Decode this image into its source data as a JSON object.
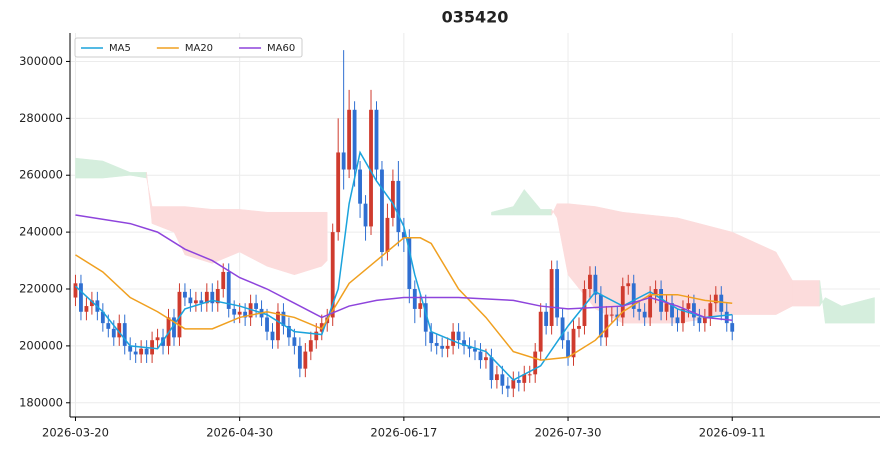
{
  "chart_data": {
    "type": "candlestick",
    "title": "035420",
    "xlim": [
      -1,
      147
    ],
    "xticks": [
      {
        "value": 0,
        "label": "2026-03-20"
      },
      {
        "value": 30,
        "label": "2026-04-30"
      },
      {
        "value": 60,
        "label": "2026-06-17"
      },
      {
        "value": 90,
        "label": "2026-07-30"
      },
      {
        "value": 120,
        "label": "2026-09-11"
      }
    ],
    "ylim": [
      175000,
      310000
    ],
    "yticks": [
      180000,
      200000,
      220000,
      240000,
      260000,
      280000,
      300000
    ],
    "grid": true,
    "legend": "upper left",
    "up_color": "#cf3b2e",
    "down_color": "#2f6fd1",
    "cloud_up_color": "#d5eedd",
    "cloud_down_color": "#fcdcdc",
    "candles": {
      "x": [
        0,
        1,
        2,
        3,
        4,
        5,
        6,
        7,
        8,
        9,
        10,
        11,
        12,
        13,
        14,
        15,
        16,
        17,
        18,
        19,
        20,
        21,
        22,
        23,
        24,
        25,
        26,
        27,
        28,
        29,
        30,
        31,
        32,
        33,
        34,
        35,
        36,
        37,
        38,
        39,
        40,
        41,
        42,
        43,
        44,
        45,
        46,
        47,
        48,
        49,
        50,
        51,
        52,
        53,
        54,
        55,
        56,
        57,
        58,
        59,
        60,
        61,
        62,
        63,
        64,
        65,
        66,
        67,
        68,
        69,
        70,
        71,
        72,
        73,
        74,
        75,
        76,
        77,
        78,
        79,
        80,
        81,
        82,
        83,
        84,
        85,
        86,
        87,
        88,
        89,
        90,
        91,
        92,
        93,
        94,
        95,
        96,
        97,
        98,
        99,
        100,
        101,
        102,
        103,
        104,
        105,
        106,
        107,
        108,
        109,
        110,
        111,
        112,
        113,
        114,
        115,
        116,
        117,
        118,
        119,
        120
      ],
      "open": [
        217000,
        222000,
        212000,
        214000,
        216000,
        212000,
        208000,
        206000,
        203000,
        208000,
        200000,
        198000,
        197000,
        199000,
        197000,
        202000,
        203000,
        200000,
        210000,
        203000,
        219000,
        217000,
        215000,
        216000,
        215000,
        219000,
        215000,
        220000,
        226000,
        213000,
        211000,
        212000,
        210000,
        215000,
        213000,
        210000,
        205000,
        202000,
        212000,
        207000,
        203000,
        200000,
        192000,
        198000,
        202000,
        205000,
        208000,
        210000,
        240000,
        268000,
        262000,
        283000,
        262000,
        250000,
        242000,
        283000,
        262000,
        233000,
        245000,
        258000,
        240000,
        238000,
        220000,
        213000,
        215000,
        205000,
        201000,
        200000,
        199000,
        200000,
        205000,
        202000,
        200000,
        199000,
        198000,
        195000,
        196000,
        188000,
        190000,
        186000,
        185000,
        188000,
        187000,
        190000,
        190000,
        198000,
        212000,
        207000,
        227000,
        210000,
        202000,
        196000,
        206000,
        207000,
        220000,
        225000,
        218000,
        203000,
        211000,
        211000,
        210000,
        221000,
        222000,
        213000,
        212000,
        210000,
        218000,
        220000,
        212000,
        215000,
        210000,
        208000,
        213000,
        215000,
        210000,
        208000,
        210000,
        215000,
        218000,
        212000,
        208000
      ],
      "high": [
        225000,
        225000,
        217000,
        219000,
        219000,
        215000,
        211000,
        209000,
        211000,
        211000,
        203000,
        201000,
        202000,
        202000,
        205000,
        206000,
        206000,
        213000,
        213000,
        222000,
        222000,
        220000,
        219000,
        219000,
        222000,
        222000,
        223000,
        229000,
        229000,
        216000,
        215000,
        215000,
        218000,
        218000,
        216000,
        213000,
        208000,
        215000,
        215000,
        210000,
        206000,
        203000,
        201000,
        205000,
        208000,
        211000,
        213000,
        243000,
        280000,
        304000,
        290000,
        286000,
        265000,
        253000,
        290000,
        286000,
        265000,
        250000,
        262000,
        265000,
        245000,
        241000,
        223000,
        218000,
        218000,
        208000,
        204000,
        203000,
        203000,
        208000,
        208000,
        205000,
        203000,
        202000,
        201000,
        199000,
        199000,
        193000,
        193000,
        189000,
        191000,
        191000,
        193000,
        193000,
        201000,
        215000,
        215000,
        230000,
        230000,
        213000,
        205000,
        209000,
        210000,
        223000,
        228000,
        228000,
        221000,
        214000,
        214000,
        214000,
        224000,
        225000,
        225000,
        216000,
        215000,
        221000,
        223000,
        223000,
        218000,
        218000,
        213000,
        216000,
        218000,
        218000,
        213000,
        213000,
        218000,
        221000,
        221000,
        215000,
        211000
      ],
      "low": [
        214000,
        209000,
        209000,
        211000,
        209000,
        205000,
        203000,
        200000,
        200000,
        197000,
        195000,
        194000,
        194000,
        194000,
        194000,
        199000,
        197000,
        197000,
        200000,
        200000,
        214000,
        212000,
        212000,
        212000,
        212000,
        212000,
        212000,
        217000,
        210000,
        208000,
        208000,
        207000,
        207000,
        210000,
        207000,
        202000,
        199000,
        199000,
        204000,
        200000,
        197000,
        189000,
        189000,
        195000,
        199000,
        202000,
        205000,
        207000,
        237000,
        255000,
        259000,
        256000,
        245000,
        237000,
        239000,
        258000,
        228000,
        230000,
        242000,
        235000,
        233000,
        215000,
        208000,
        210000,
        200000,
        198000,
        197000,
        196000,
        196000,
        197000,
        199000,
        197000,
        196000,
        195000,
        192000,
        192000,
        185000,
        185000,
        183000,
        182000,
        182000,
        184000,
        184000,
        187000,
        187000,
        195000,
        204000,
        204000,
        207000,
        199000,
        193000,
        193000,
        203000,
        204000,
        217000,
        215000,
        200000,
        200000,
        208000,
        207000,
        207000,
        218000,
        210000,
        209000,
        207000,
        207000,
        215000,
        209000,
        209000,
        207000,
        205000,
        205000,
        210000,
        207000,
        205000,
        205000,
        207000,
        212000,
        209000,
        205000,
        202000
      ],
      "close": [
        222000,
        212000,
        214000,
        216000,
        212000,
        208000,
        206000,
        203000,
        208000,
        200000,
        198000,
        197000,
        199000,
        197000,
        202000,
        203000,
        200000,
        210000,
        203000,
        219000,
        217000,
        215000,
        216000,
        215000,
        219000,
        215000,
        220000,
        226000,
        213000,
        211000,
        212000,
        210000,
        215000,
        213000,
        210000,
        205000,
        202000,
        212000,
        207000,
        203000,
        200000,
        192000,
        198000,
        202000,
        205000,
        208000,
        210000,
        240000,
        268000,
        262000,
        283000,
        262000,
        250000,
        242000,
        283000,
        262000,
        233000,
        245000,
        258000,
        240000,
        238000,
        220000,
        213000,
        215000,
        205000,
        201000,
        200000,
        199000,
        200000,
        205000,
        202000,
        200000,
        199000,
        198000,
        195000,
        196000,
        188000,
        190000,
        186000,
        185000,
        188000,
        187000,
        190000,
        190000,
        198000,
        212000,
        207000,
        227000,
        210000,
        202000,
        196000,
        206000,
        207000,
        220000,
        225000,
        218000,
        203000,
        211000,
        211000,
        210000,
        221000,
        222000,
        213000,
        212000,
        210000,
        218000,
        220000,
        212000,
        215000,
        210000,
        208000,
        213000,
        215000,
        210000,
        208000,
        210000,
        215000,
        218000,
        212000,
        208000,
        205000
      ]
    },
    "series": [
      {
        "name": "MA5",
        "color": "#1ba3dc",
        "x": [
          0,
          5,
          10,
          15,
          20,
          25,
          30,
          35,
          40,
          45,
          48,
          50,
          52,
          55,
          58,
          60,
          62,
          65,
          70,
          75,
          80,
          85,
          90,
          95,
          100,
          105,
          110,
          115,
          120
        ],
        "values": [
          221000,
          212000,
          200000,
          199000,
          213000,
          216000,
          214000,
          211000,
          205000,
          204000,
          220000,
          250000,
          268000,
          258000,
          250000,
          242000,
          225000,
          205000,
          201000,
          198000,
          188000,
          193000,
          207000,
          219000,
          214000,
          219000,
          213000,
          210000,
          211000
        ]
      },
      {
        "name": "MA20",
        "color": "#f0a020",
        "x": [
          0,
          5,
          10,
          15,
          20,
          25,
          30,
          35,
          40,
          45,
          50,
          55,
          60,
          63,
          65,
          70,
          75,
          80,
          85,
          90,
          95,
          100,
          105,
          110,
          115,
          120
        ],
        "values": [
          232000,
          226000,
          217000,
          212000,
          206000,
          206000,
          210000,
          212000,
          210000,
          206000,
          222000,
          230000,
          238000,
          238000,
          236000,
          220000,
          210000,
          198000,
          195000,
          196000,
          202000,
          212000,
          218000,
          218000,
          216000,
          215000
        ]
      },
      {
        "name": "MA60",
        "color": "#8e44dc",
        "x": [
          0,
          10,
          15,
          20,
          25,
          30,
          35,
          40,
          45,
          50,
          55,
          60,
          70,
          80,
          85,
          90,
          100,
          105,
          110,
          115,
          120
        ],
        "values": [
          246000,
          243000,
          240000,
          234000,
          230000,
          224000,
          220000,
          215000,
          210000,
          214000,
          216000,
          217000,
          217000,
          216000,
          214000,
          213000,
          214000,
          217000,
          214000,
          210000,
          209000
        ]
      }
    ],
    "cloud": {
      "x": [
        0,
        5,
        10,
        13,
        14,
        18,
        20,
        25,
        30,
        35,
        40,
        45,
        46,
        60,
        76,
        80,
        82,
        85,
        87,
        88,
        90,
        95,
        100,
        110,
        120,
        128,
        131,
        136,
        137,
        140,
        146
      ],
      "span_a": [
        266000,
        265000,
        261000,
        261000,
        243000,
        240000,
        232000,
        229000,
        233000,
        228000,
        225000,
        228000,
        230000,
        null,
        247000,
        249000,
        255000,
        248000,
        248000,
        245000,
        225000,
        213000,
        208000,
        208000,
        211000,
        211000,
        214000,
        214000,
        217000,
        214000,
        217000
      ],
      "span_b": [
        259000,
        259000,
        260000,
        259000,
        249000,
        249000,
        249000,
        248000,
        248000,
        247000,
        247000,
        247000,
        247000,
        null,
        246000,
        246000,
        246000,
        246000,
        246000,
        250000,
        250000,
        249000,
        247000,
        245000,
        240000,
        233000,
        223000,
        223000,
        208000,
        208000,
        208000
      ]
    }
  }
}
